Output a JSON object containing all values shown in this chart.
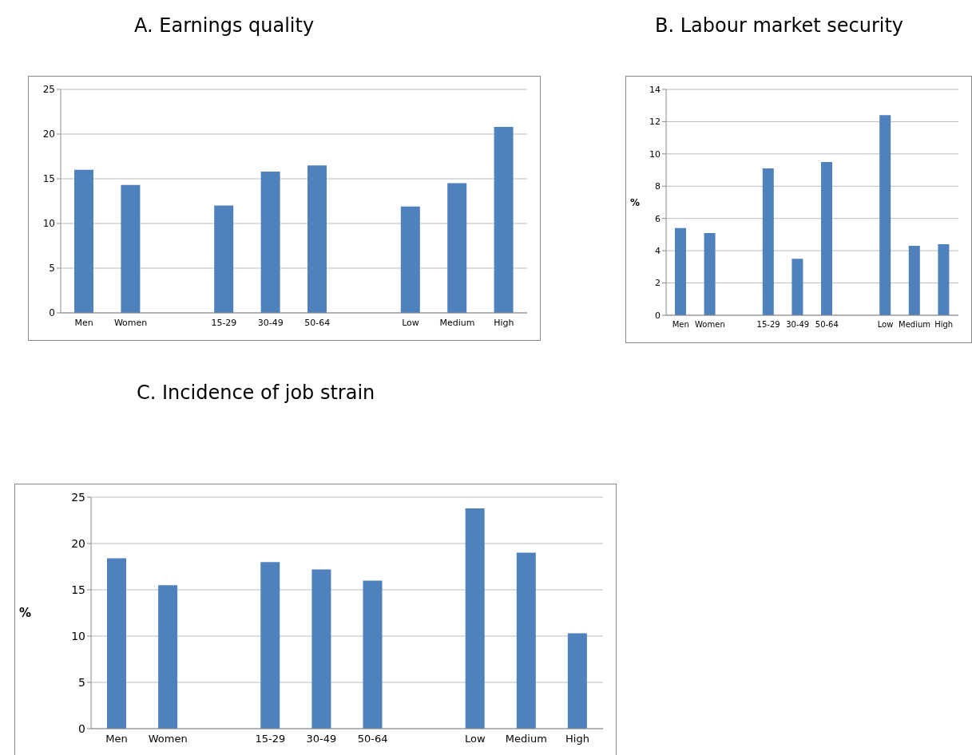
{
  "chart_data": [
    {
      "type": "bar",
      "title": "A. Earnings quality",
      "categories": [
        "Men",
        "Women",
        null,
        "15-29",
        "30-49",
        "50-64",
        null,
        "Low",
        "Medium",
        "High"
      ],
      "values": [
        16.0,
        14.3,
        null,
        12.0,
        15.8,
        16.5,
        null,
        11.9,
        14.5,
        20.8
      ],
      "color": "#4f81bd",
      "ylim": [
        0,
        25
      ],
      "yticks": [
        0,
        5,
        10,
        15,
        20,
        25
      ],
      "grid": "y",
      "legend": false
    },
    {
      "type": "bar",
      "title": "B. Labour market security",
      "ylabel": "%",
      "categories": [
        "Men",
        "Women",
        null,
        "15-29",
        "30-49",
        "50-64",
        null,
        "Low",
        "Medium",
        "High"
      ],
      "values": [
        5.4,
        5.1,
        null,
        9.1,
        3.5,
        9.5,
        null,
        12.4,
        4.3,
        4.4
      ],
      "color": "#4f81bd",
      "ylim": [
        0,
        14
      ],
      "yticks": [
        0,
        2,
        4,
        6,
        8,
        10,
        12,
        14
      ],
      "grid": "y",
      "legend": false
    },
    {
      "type": "bar",
      "title": "C. Incidence of job strain",
      "ylabel": "%",
      "categories": [
        "Men",
        "Women",
        null,
        "15-29",
        "30-49",
        "50-64",
        null,
        "Low",
        "Medium",
        "High"
      ],
      "values": [
        18.4,
        15.5,
        null,
        18.0,
        17.2,
        16.0,
        null,
        23.8,
        19.0,
        10.3
      ],
      "color": "#4f81bd",
      "ylim": [
        0,
        25
      ],
      "yticks": [
        0,
        5,
        10,
        15,
        20,
        25
      ],
      "grid": "y",
      "legend": false
    }
  ]
}
